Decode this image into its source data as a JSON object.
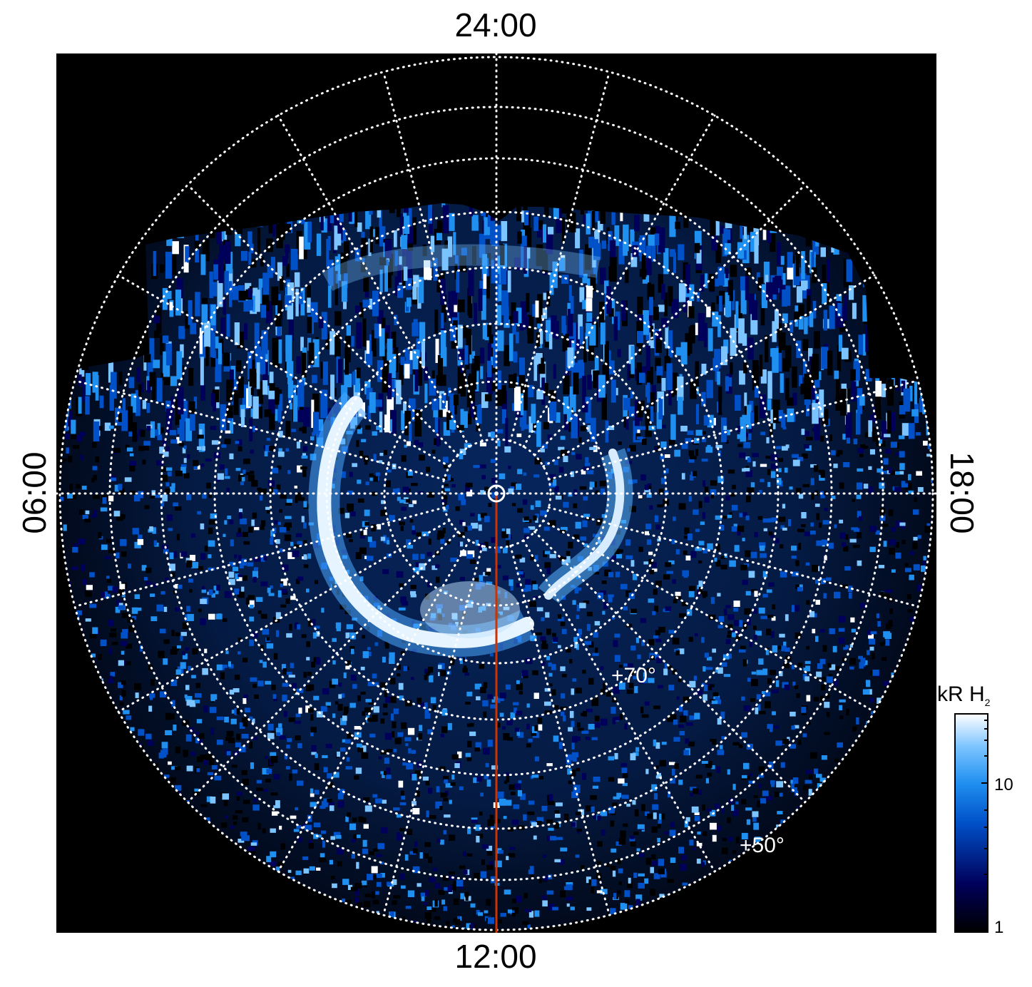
{
  "labels": {
    "top": "24:00",
    "bottom": "12:00",
    "left": "06:00",
    "right": "18:00",
    "lat70": "+70°",
    "lat50": "+50°"
  },
  "colorbar": {
    "title": "kR H",
    "title_sub": "2",
    "tick_10": "10",
    "tick_1": "1",
    "colors": [
      "#000000",
      "#00005a",
      "#0050c8",
      "#1f8ff0",
      "#7cc4ff",
      "#ffffff"
    ]
  },
  "style": {
    "background": "#000000",
    "grid_color": "#ffffff",
    "meridian_color": "#cc3300"
  }
}
